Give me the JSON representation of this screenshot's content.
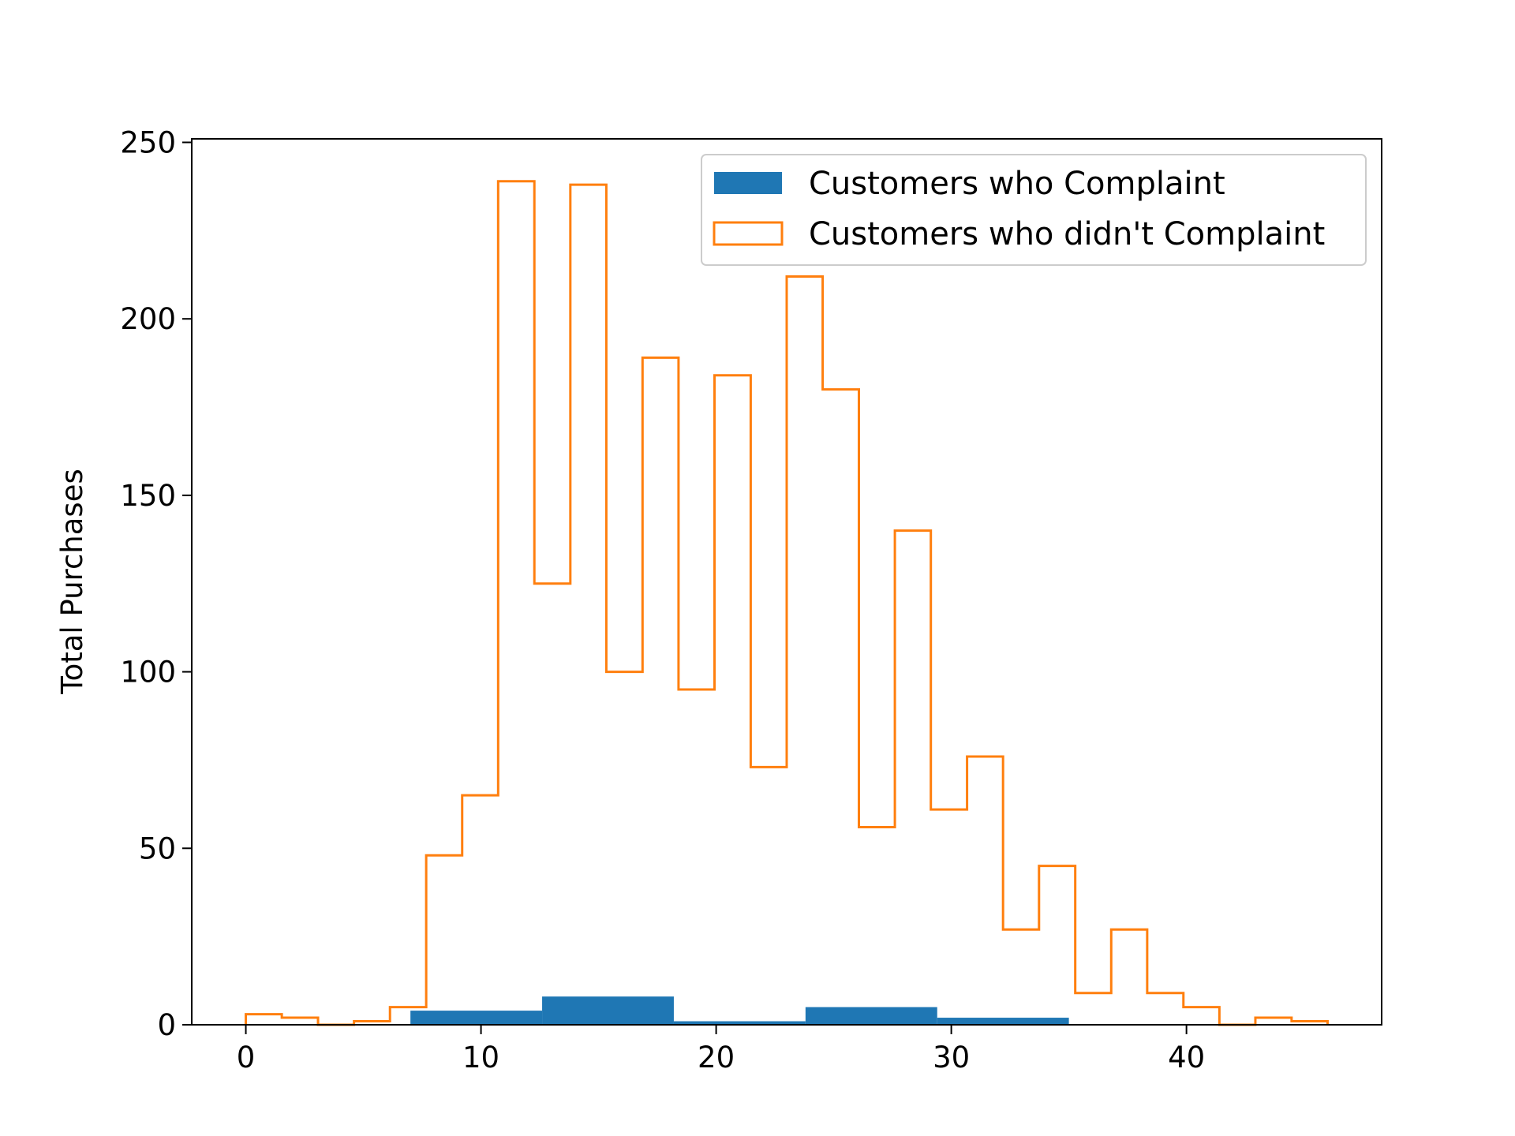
{
  "chart_data": {
    "type": "histogram",
    "title": "",
    "xlabel": "",
    "ylabel": "Total Purchases",
    "xlim": [
      -2.3,
      48.3
    ],
    "ylim": [
      0,
      251
    ],
    "xticks": [
      0,
      10,
      20,
      30,
      40
    ],
    "yticks": [
      0,
      50,
      100,
      150,
      200,
      250
    ],
    "grid": false,
    "legend_position": "top-right",
    "series": [
      {
        "name": "Customers who Complaint",
        "style": "filled",
        "color": "#1f77b4",
        "bin_edges": [
          7.0,
          12.6,
          18.2,
          23.8,
          29.4,
          35.0
        ],
        "counts": [
          4,
          8,
          1,
          5,
          2
        ]
      },
      {
        "name": "Customers who didn't Complaint",
        "style": "step",
        "color": "#ff7f0e",
        "bin_edges": [
          0.0,
          1.53,
          3.07,
          4.6,
          6.13,
          7.67,
          9.2,
          10.73,
          12.27,
          13.8,
          15.33,
          16.87,
          18.4,
          19.93,
          21.47,
          23.0,
          24.53,
          26.07,
          27.6,
          29.13,
          30.67,
          32.2,
          33.73,
          35.27,
          36.8,
          38.33,
          39.87,
          41.4,
          42.93,
          44.47,
          46.0
        ],
        "counts": [
          3,
          2,
          0,
          1,
          5,
          48,
          65,
          239,
          125,
          238,
          100,
          189,
          95,
          184,
          73,
          212,
          180,
          56,
          140,
          61,
          76,
          27,
          45,
          9,
          27,
          9,
          5,
          0,
          2,
          1
        ]
      }
    ]
  }
}
